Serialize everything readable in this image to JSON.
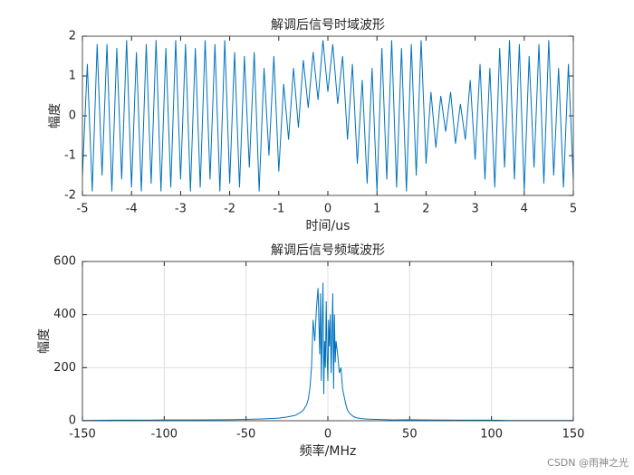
{
  "chart_data": [
    {
      "type": "line",
      "title": "解调后信号时域波形",
      "x_label": "时间/us",
      "y_label": "幅度",
      "x": [
        -5,
        -4.9,
        -4.8,
        -4.7,
        -4.6,
        -4.5,
        -4.4,
        -4.3,
        -4.2,
        -4.1,
        -4,
        -3.9,
        -3.8,
        -3.7,
        -3.6,
        -3.5,
        -3.4,
        -3.3,
        -3.2,
        -3.1,
        -3,
        -2.9,
        -2.8,
        -2.7,
        -2.6,
        -2.5,
        -2.4,
        -2.3,
        -2.2,
        -2.1,
        -2,
        -1.9,
        -1.8,
        -1.7,
        -1.6,
        -1.5,
        -1.4,
        -1.3,
        -1.2,
        -1.1,
        -1,
        -0.9,
        -0.8,
        -0.7,
        -0.6,
        -0.5,
        -0.4,
        -0.3,
        -0.2,
        -0.1,
        0,
        0.1,
        0.2,
        0.3,
        0.4,
        0.5,
        0.6,
        0.7,
        0.8,
        0.9,
        1,
        1.1,
        1.2,
        1.3,
        1.4,
        1.5,
        1.6,
        1.7,
        1.8,
        1.9,
        2,
        2.1,
        2.2,
        2.3,
        2.4,
        2.5,
        2.6,
        2.7,
        2.8,
        2.9,
        3,
        3.1,
        3.2,
        3.3,
        3.4,
        3.5,
        3.6,
        3.7,
        3.8,
        3.9,
        4,
        4.1,
        4.2,
        4.3,
        4.4,
        4.5,
        4.6,
        4.7,
        4.8,
        4.9,
        5
      ],
      "series": [
        {
          "color": "#0072bd",
          "values": [
            -1.5,
            1.3,
            -1.9,
            1.8,
            -1.5,
            1.8,
            -1.9,
            1.7,
            -1.6,
            1.9,
            -1.8,
            1.6,
            -1.9,
            1.8,
            -1.7,
            1.9,
            -1.9,
            1.7,
            -1.8,
            1.9,
            -1.6,
            1.8,
            -1.9,
            1.7,
            -1.8,
            1.9,
            -1.6,
            1.8,
            -1.9,
            1.9,
            -1.7,
            1.6,
            -1.8,
            1.5,
            -1.3,
            1.6,
            -1.9,
            1.2,
            -1.0,
            1.5,
            -1.4,
            0.8,
            -0.6,
            1.2,
            -0.3,
            1.4,
            0.2,
            1.6,
            0.4,
            1.9,
            0.6,
            1.8,
            0.3,
            1.5,
            -0.6,
            1.3,
            -1.2,
            0.9,
            -1.7,
            1.2,
            -1.9,
            1.7,
            -1.6,
            1.9,
            -1.8,
            1.7,
            -1.9,
            1.8,
            -1.5,
            1.9,
            -1.2,
            0.6,
            -0.8,
            0.5,
            -0.4,
            0.6,
            -0.7,
            0.3,
            -0.6,
            0.9,
            -1.1,
            1.3,
            -1.6,
            1.2,
            -1.8,
            1.7,
            -1.3,
            1.9,
            -1.6,
            1.8,
            -1.9,
            1.5,
            -1.3,
            1.8,
            -1.7,
            1.9,
            -1.5,
            1.2,
            -1.8,
            1.3,
            -1.6
          ]
        }
      ],
      "xlim": [
        -5,
        5
      ],
      "xticks": [
        -5,
        -4,
        -3,
        -2,
        -1,
        0,
        1,
        2,
        3,
        4,
        5
      ],
      "ylim": [
        -2,
        2
      ],
      "yticks": [
        -2,
        -1,
        0,
        1,
        2
      ],
      "grid": false
    },
    {
      "type": "line",
      "title": "解调后信号频域波形",
      "x_label": "频率/MHz",
      "y_label": "幅度",
      "x": [
        -150,
        -130,
        -110,
        -100,
        -80,
        -60,
        -50,
        -40,
        -30,
        -25,
        -20,
        -17,
        -15,
        -13,
        -12,
        -11,
        -10,
        -9,
        -8,
        -7,
        -6,
        -5,
        -4.5,
        -4,
        -3.5,
        -3,
        -2.5,
        -2,
        -1.5,
        -1,
        -0.5,
        0,
        0.5,
        1,
        1.5,
        2,
        2.5,
        3,
        3.5,
        4,
        4.5,
        5,
        6,
        7,
        8,
        9,
        10,
        11,
        12,
        13,
        15,
        17,
        20,
        25,
        30,
        40,
        50,
        60,
        80,
        100,
        110,
        130,
        150
      ],
      "series": [
        {
          "color": "#0072bd",
          "values": [
            1,
            2,
            2,
            3,
            3,
            4,
            5,
            7,
            10,
            14,
            20,
            30,
            40,
            60,
            80,
            120,
            200,
            380,
            300,
            420,
            500,
            250,
            480,
            150,
            350,
            520,
            100,
            300,
            200,
            450,
            250,
            150,
            380,
            280,
            400,
            180,
            320,
            480,
            120,
            400,
            220,
            300,
            250,
            180,
            200,
            120,
            90,
            60,
            40,
            30,
            18,
            12,
            8,
            6,
            5,
            3,
            4,
            3,
            2,
            2,
            1,
            1,
            1
          ]
        }
      ],
      "xlim": [
        -150,
        150
      ],
      "xticks": [
        -150,
        -100,
        -50,
        0,
        50,
        100,
        150
      ],
      "ylim": [
        0,
        600
      ],
      "yticks": [
        0,
        200,
        400,
        600
      ],
      "grid": true
    }
  ],
  "watermark": "CSDN @雨神之光"
}
